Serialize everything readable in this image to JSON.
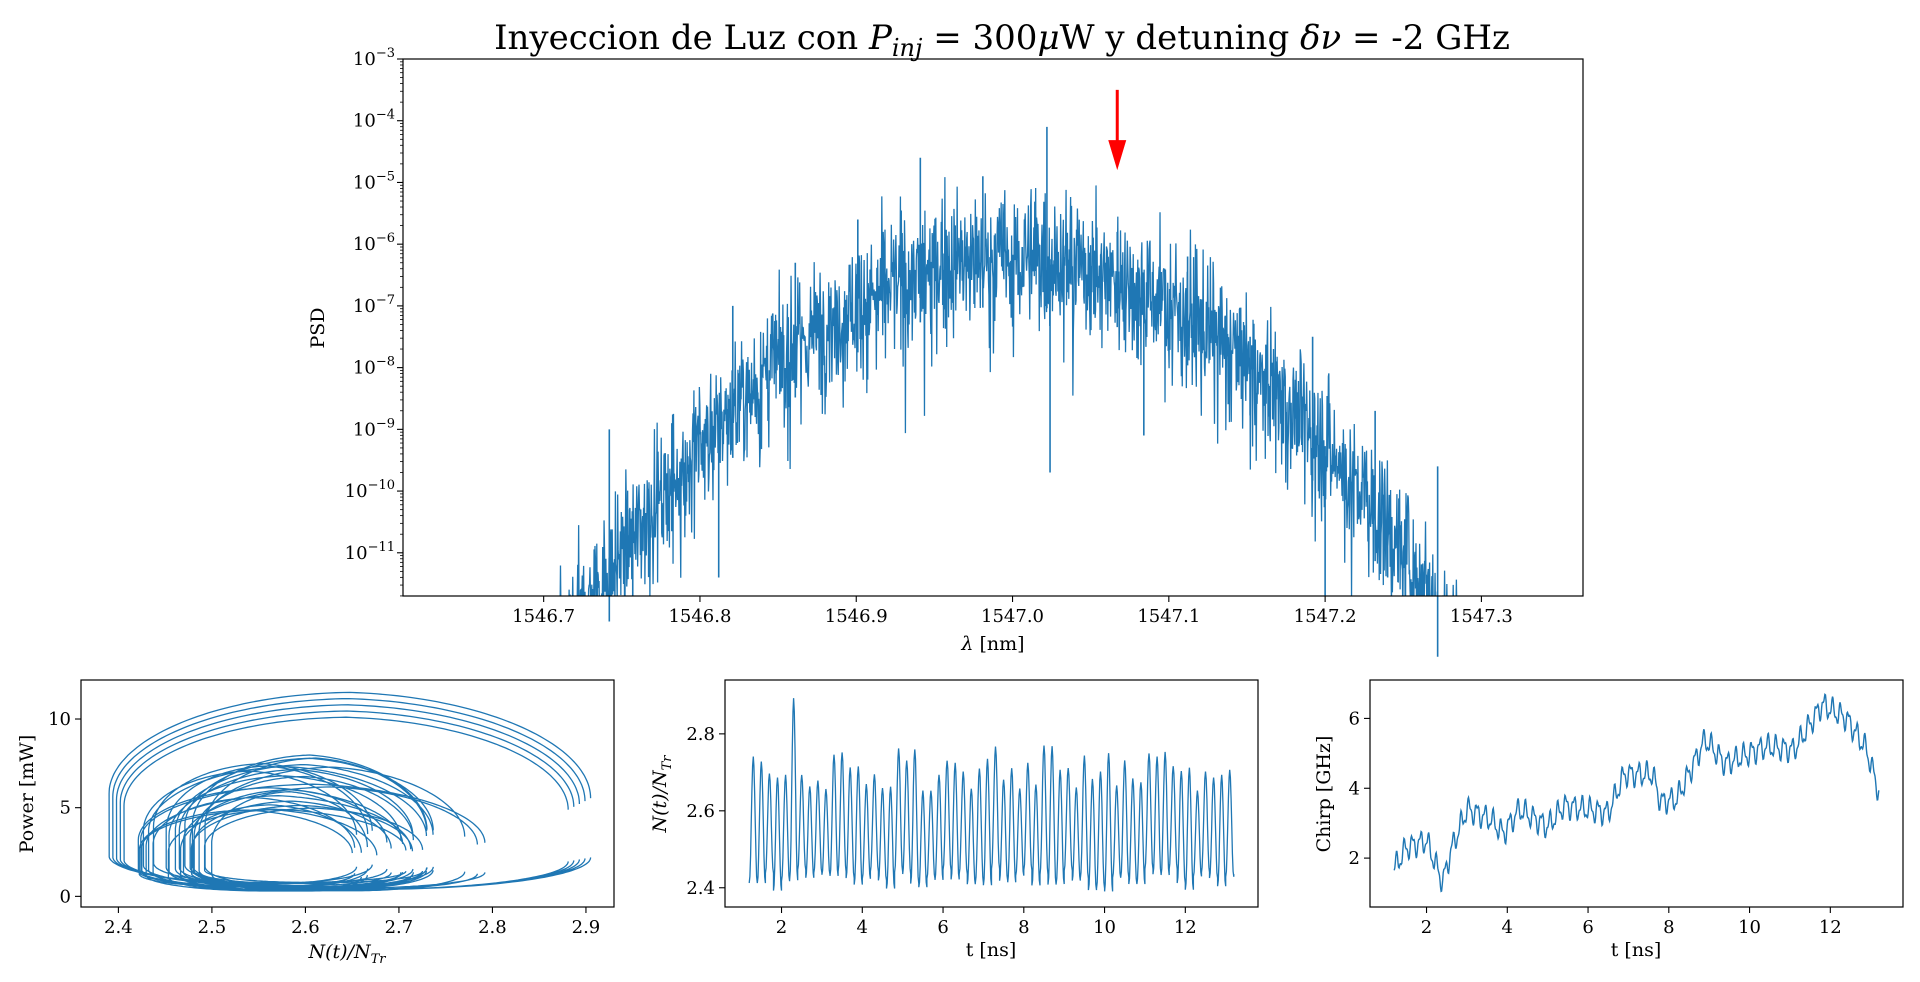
{
  "colors": {
    "series": "#1f77b4",
    "arrow": "#ff0000",
    "axes": "#000000"
  },
  "chart_data": [
    {
      "type": "line",
      "title": {
        "prefix": "Inyeccion de Luz con ",
        "pinj_symbol": "P",
        "pinj_sub": "inj",
        "equals": " = ",
        "pinj_value": " 300",
        "mu": "μ",
        "unit_w": "W",
        "middle": " y detuning ",
        "detuning_symbol": "δν",
        "equals2": " = ",
        "detuning_value": "-2 GHz"
      },
      "xlabel_symbol": "λ",
      "xlabel_unit": " [nm]",
      "ylabel": "PSD",
      "yscale": "log",
      "xlim": [
        1546.61,
        1547.365
      ],
      "ylim_exp": [
        -11.7,
        -3
      ],
      "xticks": [
        "1546.7",
        "1546.8",
        "1546.9",
        "1547.0",
        "1547.1",
        "1547.2",
        "1547.3"
      ],
      "xtick_values": [
        1546.7,
        1546.8,
        1546.9,
        1547.0,
        1547.1,
        1547.2,
        1547.3
      ],
      "ytick_base": "10",
      "ytick_exponents": [
        "−3",
        "−4",
        "−5",
        "−6",
        "−7",
        "−8",
        "−9",
        "−10",
        "−11"
      ],
      "ytick_values_exp": [
        -3,
        -4,
        -5,
        -6,
        -7,
        -8,
        -9,
        -10,
        -11
      ],
      "envelope": {
        "center_nm": 1547.0,
        "peak_log": -6.2,
        "width_nm": 0.27,
        "noise_log": 1.4
      },
      "spikes": [
        {
          "x": 1546.742,
          "exp": -9.0
        },
        {
          "x": 1546.782,
          "exp": -8.9
        },
        {
          "x": 1546.821,
          "exp": -7.0
        },
        {
          "x": 1546.861,
          "exp": -6.3
        },
        {
          "x": 1546.901,
          "exp": -5.6
        },
        {
          "x": 1546.941,
          "exp": -4.6
        },
        {
          "x": 1546.981,
          "exp": -4.9
        },
        {
          "x": 1547.022,
          "exp": -4.1
        },
        {
          "x": 1547.067,
          "exp": -5.8
        },
        {
          "x": 1547.112,
          "exp": -6.2
        },
        {
          "x": 1547.152,
          "exp": -7.5
        },
        {
          "x": 1547.192,
          "exp": -7.5
        },
        {
          "x": 1547.232,
          "exp": -8.7
        },
        {
          "x": 1547.272,
          "exp": -9.6
        }
      ],
      "dips": [
        {
          "x": 1546.757,
          "exp": -11.7
        },
        {
          "x": 1546.812,
          "exp": -11.4
        },
        {
          "x": 1547.024,
          "exp": -9.7
        },
        {
          "x": 1547.084,
          "exp": -9.1
        },
        {
          "x": 1547.2,
          "exp": -11.7
        },
        {
          "x": 1547.24,
          "exp": -11.4
        }
      ],
      "arrow": {
        "x": 1547.067,
        "from_exp": -3.5,
        "to_exp": -4.8
      }
    },
    {
      "type": "line",
      "xlabel_symbol": "N(t)/N",
      "xlabel_sub": "Tr",
      "ylabel": "Power [mW]",
      "xlim": [
        2.36,
        2.93
      ],
      "ylim": [
        -0.6,
        12.2
      ],
      "xticks": [
        "2.4",
        "2.5",
        "2.6",
        "2.7",
        "2.8",
        "2.9"
      ],
      "xtick_values": [
        2.4,
        2.5,
        2.6,
        2.7,
        2.8,
        2.9
      ],
      "yticks": [
        "0",
        "5",
        "10"
      ],
      "ytick_values": [
        0,
        5,
        10
      ],
      "attractor": {
        "outer_n_range": [
          2.39,
          2.905
        ],
        "outer_p_range": [
          0.4,
          11.5
        ],
        "inner_n_range": [
          2.42,
          2.8
        ],
        "inner_p_range": [
          0.3,
          8.0
        ]
      }
    },
    {
      "type": "line",
      "xlabel": "t [ns]",
      "ylabel_symbol": "N(t)/N",
      "ylabel_sub": "Tr",
      "xlim": [
        0.6,
        13.8
      ],
      "ylim": [
        2.35,
        2.94
      ],
      "xticks": [
        "2",
        "4",
        "6",
        "8",
        "10",
        "12"
      ],
      "xtick_values": [
        2,
        4,
        6,
        8,
        10,
        12
      ],
      "yticks": [
        "2.4",
        "2.6",
        "2.8"
      ],
      "ytick_values": [
        2.4,
        2.6,
        2.8
      ],
      "t_range": [
        1.2,
        13.2
      ],
      "oscillation_period_ns": 0.2,
      "min_level": 2.39,
      "max_level_typical": 2.77,
      "max_level_peaks": 2.91
    },
    {
      "type": "line",
      "xlabel": "t [ns]",
      "ylabel": "Chirp [GHz]",
      "xlim": [
        0.6,
        13.8
      ],
      "ylim": [
        0.6,
        7.1
      ],
      "xticks": [
        "2",
        "4",
        "6",
        "8",
        "10",
        "12"
      ],
      "xtick_values": [
        2,
        4,
        6,
        8,
        10,
        12
      ],
      "yticks": [
        "2",
        "4",
        "6"
      ],
      "ytick_values": [
        2,
        4,
        6
      ],
      "trend": [
        {
          "t": 1.2,
          "v": 1.7
        },
        {
          "t": 1.5,
          "v": 2.3
        },
        {
          "t": 2.0,
          "v": 2.5
        },
        {
          "t": 2.4,
          "v": 1.3
        },
        {
          "t": 2.6,
          "v": 2.2
        },
        {
          "t": 3.0,
          "v": 3.4
        },
        {
          "t": 3.6,
          "v": 3.1
        },
        {
          "t": 3.9,
          "v": 2.7
        },
        {
          "t": 4.3,
          "v": 3.4
        },
        {
          "t": 5.0,
          "v": 2.9
        },
        {
          "t": 5.4,
          "v": 3.5
        },
        {
          "t": 6.5,
          "v": 3.3
        },
        {
          "t": 6.9,
          "v": 4.4
        },
        {
          "t": 7.6,
          "v": 4.4
        },
        {
          "t": 7.8,
          "v": 3.6
        },
        {
          "t": 8.2,
          "v": 3.7
        },
        {
          "t": 8.9,
          "v": 5.4
        },
        {
          "t": 9.4,
          "v": 4.7
        },
        {
          "t": 10.4,
          "v": 5.2
        },
        {
          "t": 11.1,
          "v": 5.1
        },
        {
          "t": 11.8,
          "v": 6.4
        },
        {
          "t": 12.4,
          "v": 6.0
        },
        {
          "t": 12.9,
          "v": 5.1
        },
        {
          "t": 13.2,
          "v": 3.9
        }
      ]
    }
  ]
}
